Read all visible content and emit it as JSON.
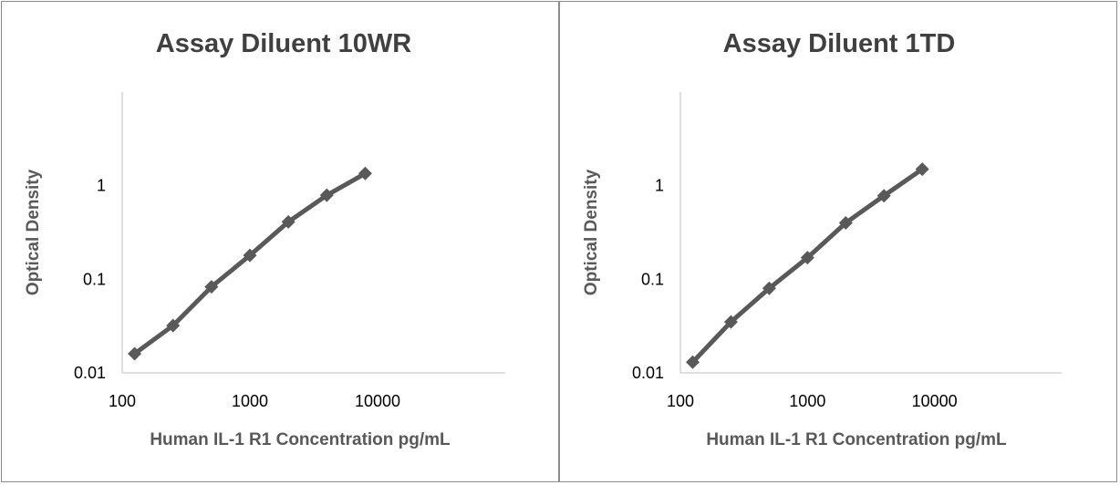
{
  "chart_data": [
    {
      "type": "line",
      "title": "Assay Diluent 10WR",
      "xlabel": "Human IL-1 R1 Concentration pg/mL",
      "ylabel": "Optical Density",
      "x_scale": "log",
      "y_scale": "log",
      "xlim": [
        100,
        100000
      ],
      "ylim": [
        0.01,
        10
      ],
      "x_ticks": [
        "100",
        "1000",
        "10000"
      ],
      "y_ticks": [
        "0.01",
        "0.1",
        "1"
      ],
      "grid": false,
      "series_color": "#595959",
      "x": [
        125,
        250,
        500,
        1000,
        2000,
        4000,
        8000
      ],
      "series": [
        {
          "values": [
            0.016,
            0.032,
            0.083,
            0.18,
            0.41,
            0.79,
            1.35
          ]
        }
      ]
    },
    {
      "type": "line",
      "title": "Assay Diluent 1TD",
      "xlabel": "Human IL-1 R1 Concentration pg/mL",
      "ylabel": "Optical Density",
      "x_scale": "log",
      "y_scale": "log",
      "xlim": [
        100,
        100000
      ],
      "ylim": [
        0.01,
        10
      ],
      "x_ticks": [
        "100",
        "1000",
        "10000"
      ],
      "y_ticks": [
        "0.01",
        "0.1",
        "1"
      ],
      "grid": false,
      "series_color": "#595959",
      "x": [
        125,
        250,
        500,
        1000,
        2000,
        4000,
        8000
      ],
      "series": [
        {
          "values": [
            0.013,
            0.035,
            0.08,
            0.17,
            0.4,
            0.78,
            1.5
          ]
        }
      ]
    }
  ]
}
